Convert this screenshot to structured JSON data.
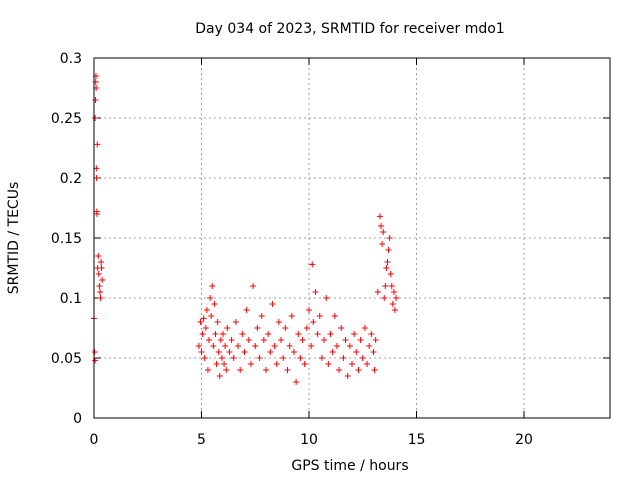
{
  "chart_data": {
    "type": "scatter",
    "title": "Day 034 of 2023, SRMTID for receiver mdo1",
    "xlabel": "GPS time / hours",
    "ylabel": "SRMTID / TECUs",
    "xlim": [
      0,
      24
    ],
    "ylim": [
      0,
      0.3
    ],
    "grid": true,
    "marker": "+",
    "xticks": [
      0,
      5,
      10,
      15,
      20
    ],
    "xtick_labels": [
      "0",
      "5",
      "10",
      "15",
      "20"
    ],
    "yticks": [
      0,
      0.05,
      0.1,
      0.15,
      0.2,
      0.25,
      0.3
    ],
    "ytick_labels": [
      "0",
      "0.05",
      "0.1",
      "0.15",
      "0.2",
      "0.25",
      "0.3"
    ],
    "series": [
      {
        "name": "SRMTID",
        "color": "#ff0000",
        "points": [
          [
            0.0,
            0.083
          ],
          [
            0.03,
            0.055
          ],
          [
            0.05,
            0.048
          ],
          [
            0.05,
            0.25
          ],
          [
            0.07,
            0.265
          ],
          [
            0.08,
            0.28
          ],
          [
            0.09,
            0.285
          ],
          [
            0.1,
            0.275
          ],
          [
            0.11,
            0.208
          ],
          [
            0.12,
            0.2
          ],
          [
            0.13,
            0.172
          ],
          [
            0.14,
            0.17
          ],
          [
            0.15,
            0.228
          ],
          [
            0.17,
            0.125
          ],
          [
            0.2,
            0.135
          ],
          [
            0.22,
            0.12
          ],
          [
            0.25,
            0.11
          ],
          [
            0.28,
            0.105
          ],
          [
            0.3,
            0.1
          ],
          [
            0.33,
            0.13
          ],
          [
            0.35,
            0.125
          ],
          [
            0.38,
            0.115
          ],
          [
            4.88,
            0.06
          ],
          [
            4.95,
            0.08
          ],
          [
            5.0,
            0.055
          ],
          [
            5.05,
            0.07
          ],
          [
            5.1,
            0.083
          ],
          [
            5.15,
            0.05
          ],
          [
            5.2,
            0.075
          ],
          [
            5.25,
            0.09
          ],
          [
            5.3,
            0.04
          ],
          [
            5.35,
            0.065
          ],
          [
            5.4,
            0.1
          ],
          [
            5.45,
            0.085
          ],
          [
            5.5,
            0.11
          ],
          [
            5.55,
            0.06
          ],
          [
            5.6,
            0.095
          ],
          [
            5.65,
            0.07
          ],
          [
            5.7,
            0.045
          ],
          [
            5.75,
            0.08
          ],
          [
            5.8,
            0.055
          ],
          [
            5.85,
            0.035
          ],
          [
            5.9,
            0.065
          ],
          [
            5.95,
            0.05
          ],
          [
            6.0,
            0.07
          ],
          [
            6.05,
            0.045
          ],
          [
            6.1,
            0.06
          ],
          [
            6.15,
            0.04
          ],
          [
            6.2,
            0.075
          ],
          [
            6.3,
            0.055
          ],
          [
            6.4,
            0.065
          ],
          [
            6.5,
            0.05
          ],
          [
            6.6,
            0.08
          ],
          [
            6.7,
            0.06
          ],
          [
            6.8,
            0.04
          ],
          [
            6.9,
            0.07
          ],
          [
            7.0,
            0.055
          ],
          [
            7.1,
            0.09
          ],
          [
            7.2,
            0.065
          ],
          [
            7.3,
            0.045
          ],
          [
            7.4,
            0.11
          ],
          [
            7.5,
            0.06
          ],
          [
            7.6,
            0.075
          ],
          [
            7.7,
            0.05
          ],
          [
            7.8,
            0.085
          ],
          [
            7.9,
            0.065
          ],
          [
            8.0,
            0.04
          ],
          [
            8.1,
            0.07
          ],
          [
            8.2,
            0.055
          ],
          [
            8.3,
            0.095
          ],
          [
            8.4,
            0.06
          ],
          [
            8.5,
            0.045
          ],
          [
            8.6,
            0.08
          ],
          [
            8.7,
            0.065
          ],
          [
            8.8,
            0.05
          ],
          [
            8.9,
            0.075
          ],
          [
            9.0,
            0.04
          ],
          [
            9.1,
            0.06
          ],
          [
            9.2,
            0.085
          ],
          [
            9.3,
            0.055
          ],
          [
            9.4,
            0.03
          ],
          [
            9.5,
            0.07
          ],
          [
            9.6,
            0.05
          ],
          [
            9.7,
            0.065
          ],
          [
            9.8,
            0.045
          ],
          [
            9.9,
            0.075
          ],
          [
            10.0,
            0.09
          ],
          [
            10.1,
            0.06
          ],
          [
            10.15,
            0.128
          ],
          [
            10.2,
            0.08
          ],
          [
            10.3,
            0.105
          ],
          [
            10.4,
            0.07
          ],
          [
            10.5,
            0.085
          ],
          [
            10.6,
            0.05
          ],
          [
            10.7,
            0.065
          ],
          [
            10.8,
            0.1
          ],
          [
            10.9,
            0.045
          ],
          [
            11.0,
            0.07
          ],
          [
            11.1,
            0.055
          ],
          [
            11.2,
            0.085
          ],
          [
            11.3,
            0.06
          ],
          [
            11.4,
            0.04
          ],
          [
            11.5,
            0.075
          ],
          [
            11.6,
            0.05
          ],
          [
            11.7,
            0.065
          ],
          [
            11.8,
            0.035
          ],
          [
            11.9,
            0.06
          ],
          [
            12.0,
            0.045
          ],
          [
            12.1,
            0.07
          ],
          [
            12.2,
            0.055
          ],
          [
            12.3,
            0.04
          ],
          [
            12.4,
            0.065
          ],
          [
            12.5,
            0.05
          ],
          [
            12.6,
            0.075
          ],
          [
            12.7,
            0.045
          ],
          [
            12.8,
            0.06
          ],
          [
            12.9,
            0.07
          ],
          [
            13.0,
            0.055
          ],
          [
            13.05,
            0.04
          ],
          [
            13.1,
            0.065
          ],
          [
            13.2,
            0.105
          ],
          [
            13.3,
            0.168
          ],
          [
            13.35,
            0.16
          ],
          [
            13.4,
            0.145
          ],
          [
            13.45,
            0.155
          ],
          [
            13.5,
            0.1
          ],
          [
            13.55,
            0.11
          ],
          [
            13.6,
            0.125
          ],
          [
            13.65,
            0.13
          ],
          [
            13.7,
            0.14
          ],
          [
            13.75,
            0.15
          ],
          [
            13.8,
            0.12
          ],
          [
            13.85,
            0.11
          ],
          [
            13.9,
            0.095
          ],
          [
            13.95,
            0.105
          ],
          [
            14.0,
            0.09
          ],
          [
            14.05,
            0.1
          ]
        ]
      }
    ]
  }
}
